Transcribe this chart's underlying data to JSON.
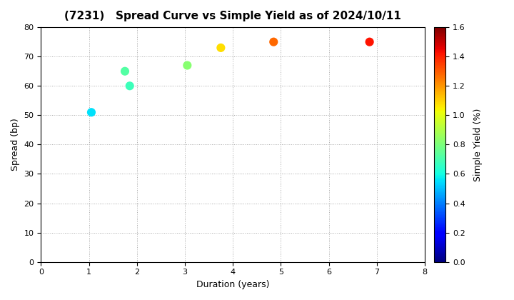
{
  "title": "(7231)   Spread Curve vs Simple Yield as of 2024/10/11",
  "xlabel": "Duration (years)",
  "ylabel": "Spread (bp)",
  "colorbar_label": "Simple Yield (%)",
  "xlim": [
    0,
    8
  ],
  "ylim": [
    0,
    80
  ],
  "xticks": [
    0,
    1,
    2,
    3,
    4,
    5,
    6,
    7,
    8
  ],
  "yticks": [
    0,
    10,
    20,
    30,
    40,
    50,
    60,
    70,
    80
  ],
  "points": [
    {
      "duration": 1.05,
      "spread": 51,
      "simple_yield": 0.55
    },
    {
      "duration": 1.75,
      "spread": 65,
      "simple_yield": 0.72
    },
    {
      "duration": 1.85,
      "spread": 60,
      "simple_yield": 0.68
    },
    {
      "duration": 3.05,
      "spread": 67,
      "simple_yield": 0.82
    },
    {
      "duration": 3.75,
      "spread": 73,
      "simple_yield": 1.08
    },
    {
      "duration": 4.85,
      "spread": 75,
      "simple_yield": 1.28
    },
    {
      "duration": 6.85,
      "spread": 75,
      "simple_yield": 1.42
    }
  ],
  "cmap": "jet",
  "clim": [
    0.0,
    1.6
  ],
  "colorbar_ticks": [
    0.0,
    0.2,
    0.4,
    0.6,
    0.8,
    1.0,
    1.2,
    1.4,
    1.6
  ],
  "marker_size": 60,
  "background_color": "#ffffff",
  "grid_color": "#aaaaaa",
  "grid_linestyle": "dotted"
}
